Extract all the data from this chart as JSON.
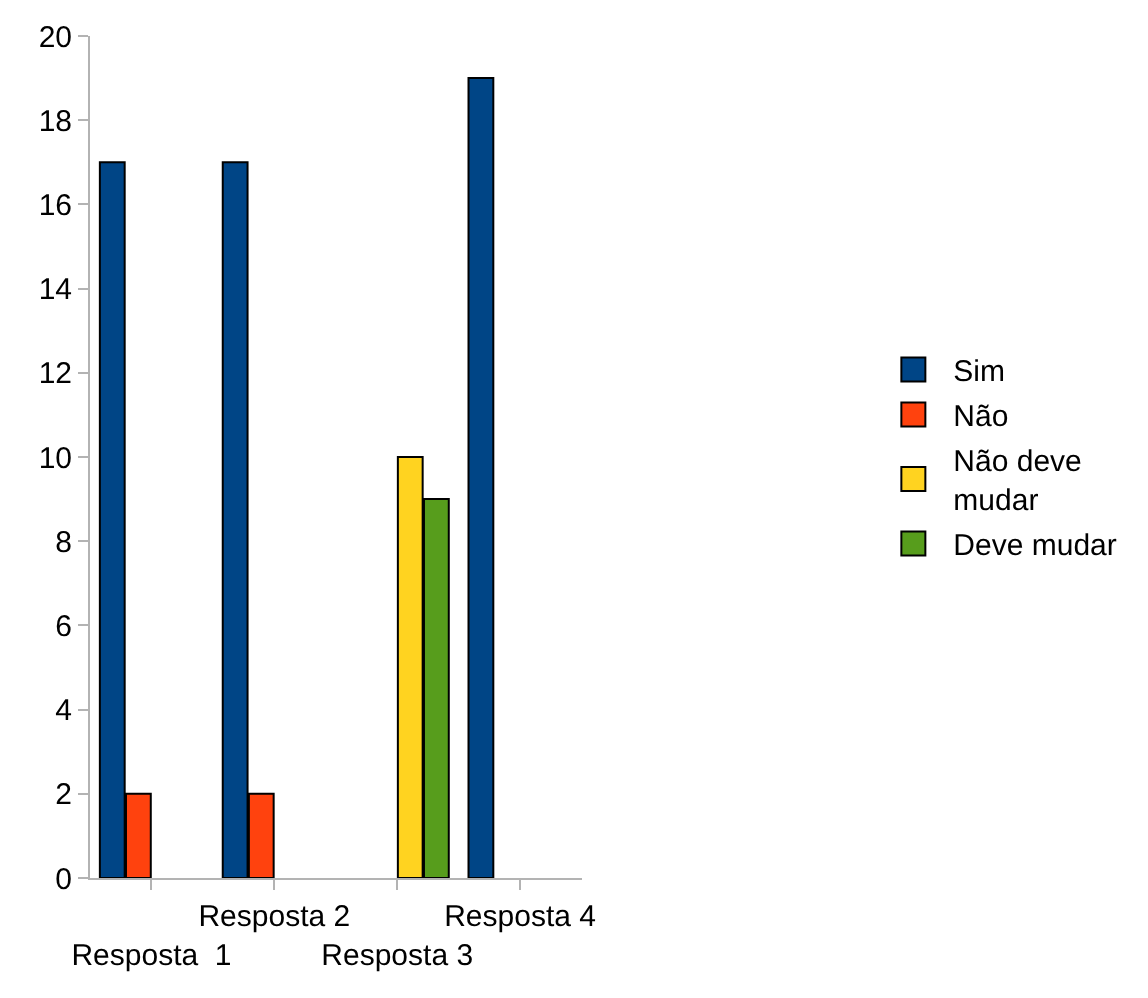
{
  "chart_data": {
    "type": "bar",
    "categories": [
      "Resposta  1",
      "Resposta 2",
      "Resposta 3",
      "Resposta 4"
    ],
    "series": [
      {
        "name": "Sim",
        "color": "#004586",
        "values": [
          17,
          17,
          null,
          19
        ]
      },
      {
        "name": "Não",
        "color": "#ff420e",
        "values": [
          2,
          2,
          null,
          null
        ]
      },
      {
        "name": "Não deve mudar",
        "color": "#ffd320",
        "values": [
          null,
          null,
          10,
          null
        ]
      },
      {
        "name": "Deve mudar",
        "color": "#579d1c",
        "values": [
          null,
          null,
          9,
          null
        ]
      }
    ],
    "ylim": [
      0,
      20
    ],
    "yticks": [
      0,
      2,
      4,
      6,
      8,
      10,
      12,
      14,
      16,
      18,
      20
    ],
    "legend": "right"
  }
}
